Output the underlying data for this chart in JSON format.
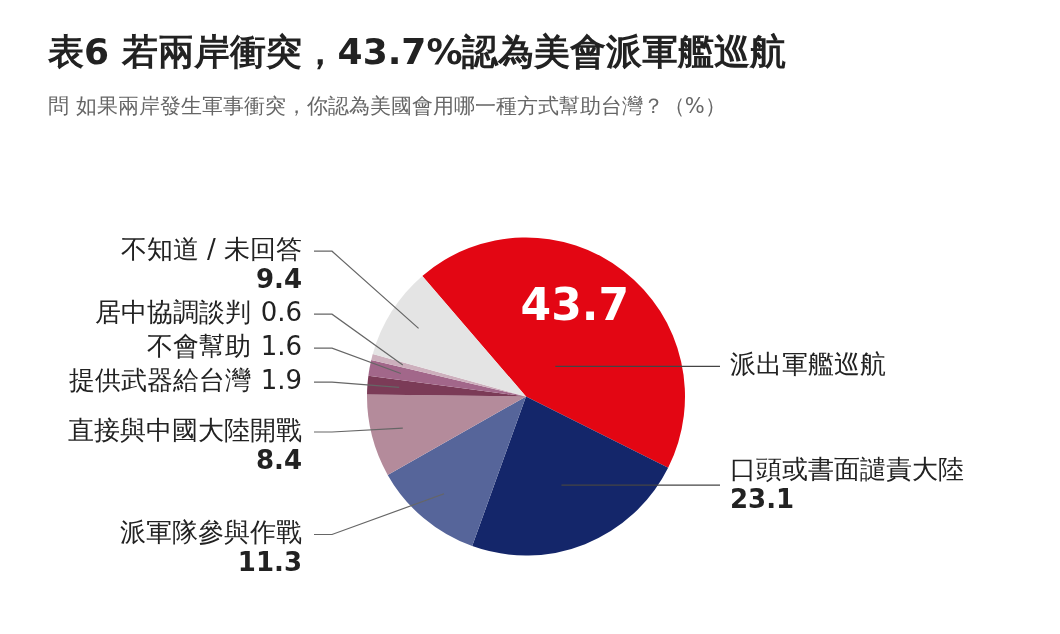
{
  "chart_data": {
    "type": "pie",
    "title": "表6 若兩岸衝突，43.7%認為美會派軍艦巡航",
    "subtitle": "問 如果兩岸發生軍事衝突，你認為美國會用哪一種方式幫助台灣？（%）",
    "categories": [
      "派出軍艦巡航",
      "口頭或書面譴責大陸",
      "派軍隊參與作戰",
      "直接與中國大陸開戰",
      "提供武器給台灣",
      "不會幫助",
      "居中協調談判",
      "不知道 / 未回答"
    ],
    "values": [
      43.7,
      23.1,
      11.3,
      8.4,
      1.9,
      1.6,
      0.6,
      9.4
    ],
    "colors": [
      "#e30613",
      "#14266a",
      "#56659a",
      "#b48b9b",
      "#7b3b57",
      "#a2678a",
      "#cdb0bd",
      "#e4e4e4"
    ],
    "data_labels": true,
    "legend": false
  }
}
